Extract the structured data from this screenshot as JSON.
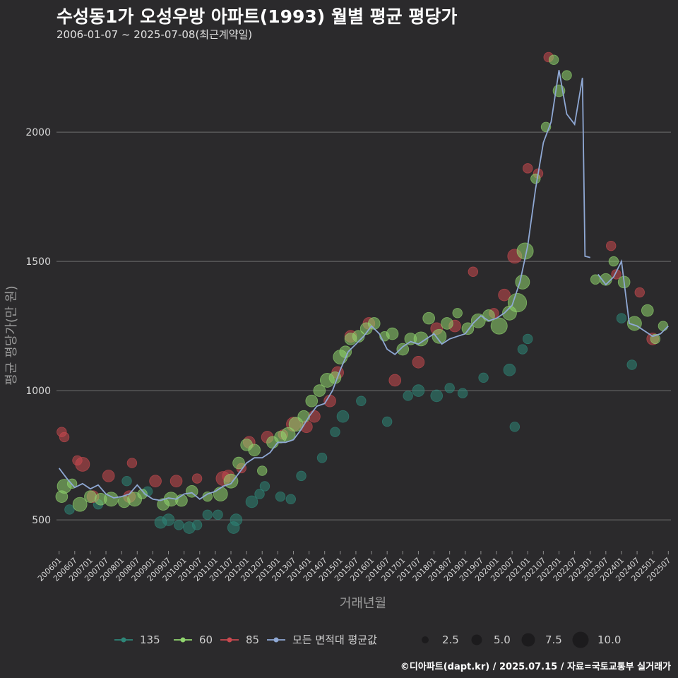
{
  "title": "수성동1가 오성우방 아파트(1993) 월별 평균 평당가",
  "subtitle": "2006-01-07 ~ 2025-07-08(최근계약일)",
  "credit": "©디아파트(dapt.kr) / 2025.07.15 / 자료=국토교통부 실거래가",
  "colors": {
    "background": "#2b2a2c",
    "grid": "#6e6e6e",
    "s135": "#2e8577",
    "s60": "#90d46e",
    "s85": "#c8494f",
    "avg": "#8fa8d4"
  },
  "chart_data": {
    "type": "scatter",
    "xlabel": "거래년월",
    "ylabel": "평균 평당가(만 원)",
    "x_range": [
      "2005-12",
      "2025-08"
    ],
    "ylim": [
      380,
      2320
    ],
    "y_ticks": [
      500,
      1000,
      1500,
      2000
    ],
    "x_ticks": [
      "200601",
      "200607",
      "200701",
      "200707",
      "200801",
      "200807",
      "200901",
      "200907",
      "201001",
      "201007",
      "201101",
      "201107",
      "201201",
      "201207",
      "201301",
      "201307",
      "201401",
      "201407",
      "201501",
      "201507",
      "201601",
      "201607",
      "201701",
      "201707",
      "201801",
      "201807",
      "201901",
      "201907",
      "202001",
      "202007",
      "202101",
      "202107",
      "202201",
      "202207",
      "202301",
      "202307",
      "202401",
      "202407",
      "202501",
      "202507"
    ],
    "grid": "horizontal",
    "legend_position": "bottom",
    "legend": {
      "series": [
        "135",
        "60",
        "85",
        "모든 면적대 평균값"
      ],
      "sizes": [
        "2.5",
        "5.0",
        "7.5",
        "10.0"
      ]
    },
    "avg_line": [
      [
        "2006-01",
        700
      ],
      [
        "2006-04",
        660
      ],
      [
        "2006-07",
        625
      ],
      [
        "2006-10",
        640
      ],
      [
        "2007-01",
        620
      ],
      [
        "2007-04",
        635
      ],
      [
        "2007-07",
        600
      ],
      [
        "2007-10",
        585
      ],
      [
        "2008-01",
        590
      ],
      [
        "2008-04",
        600
      ],
      [
        "2008-07",
        635
      ],
      [
        "2008-10",
        600
      ],
      [
        "2009-01",
        580
      ],
      [
        "2009-04",
        575
      ],
      [
        "2009-07",
        585
      ],
      [
        "2009-10",
        580
      ],
      [
        "2010-01",
        600
      ],
      [
        "2010-04",
        605
      ],
      [
        "2010-07",
        580
      ],
      [
        "2010-10",
        600
      ],
      [
        "2011-01",
        610
      ],
      [
        "2011-04",
        630
      ],
      [
        "2011-07",
        640
      ],
      [
        "2011-10",
        680
      ],
      [
        "2012-01",
        720
      ],
      [
        "2012-04",
        740
      ],
      [
        "2012-07",
        740
      ],
      [
        "2012-10",
        760
      ],
      [
        "2013-01",
        800
      ],
      [
        "2013-04",
        800
      ],
      [
        "2013-07",
        810
      ],
      [
        "2013-10",
        850
      ],
      [
        "2014-01",
        900
      ],
      [
        "2014-04",
        940
      ],
      [
        "2014-07",
        950
      ],
      [
        "2014-10",
        1000
      ],
      [
        "2015-01",
        1080
      ],
      [
        "2015-04",
        1150
      ],
      [
        "2015-07",
        1180
      ],
      [
        "2015-10",
        1210
      ],
      [
        "2016-01",
        1250
      ],
      [
        "2016-04",
        1220
      ],
      [
        "2016-07",
        1160
      ],
      [
        "2016-10",
        1140
      ],
      [
        "2017-01",
        1170
      ],
      [
        "2017-04",
        1190
      ],
      [
        "2017-07",
        1180
      ],
      [
        "2017-10",
        1200
      ],
      [
        "2018-01",
        1220
      ],
      [
        "2018-04",
        1180
      ],
      [
        "2018-07",
        1200
      ],
      [
        "2018-10",
        1210
      ],
      [
        "2019-01",
        1220
      ],
      [
        "2019-04",
        1260
      ],
      [
        "2019-07",
        1290
      ],
      [
        "2019-10",
        1270
      ],
      [
        "2020-01",
        1280
      ],
      [
        "2020-04",
        1300
      ],
      [
        "2020-07",
        1330
      ],
      [
        "2020-10",
        1420
      ],
      [
        "2021-01",
        1560
      ],
      [
        "2021-04",
        1780
      ],
      [
        "2021-07",
        1960
      ],
      [
        "2021-10",
        2040
      ],
      [
        "2022-01",
        2240
      ],
      [
        "2022-04",
        2070
      ],
      [
        "2022-07",
        2030
      ],
      [
        "2022-10",
        2210
      ],
      [
        "2022-11",
        1520
      ],
      [
        "2023-01",
        1515
      ],
      [
        "null",
        null
      ],
      [
        "2023-04",
        1450
      ],
      [
        "2023-07",
        1410
      ],
      [
        "2023-10",
        1440
      ],
      [
        "2024-01",
        1500
      ],
      [
        "2024-04",
        1260
      ],
      [
        "2024-07",
        1250
      ],
      [
        "2024-10",
        1230
      ],
      [
        "2025-01",
        1210
      ],
      [
        "2025-04",
        1220
      ],
      [
        "2025-07",
        1250
      ]
    ],
    "points": {
      "60": [
        [
          "2006-02",
          590,
          4
        ],
        [
          "2006-03",
          630,
          5
        ],
        [
          "2006-06",
          640,
          3
        ],
        [
          "2006-09",
          560,
          5
        ],
        [
          "2007-01",
          590,
          4
        ],
        [
          "2007-05",
          580,
          4
        ],
        [
          "2007-09",
          580,
          5
        ],
        [
          "2008-02",
          570,
          4
        ],
        [
          "2008-06",
          580,
          5
        ],
        [
          "2008-09",
          600,
          3
        ],
        [
          "2009-05",
          560,
          4
        ],
        [
          "2009-08",
          580,
          5
        ],
        [
          "2009-12",
          575,
          4
        ],
        [
          "2010-04",
          610,
          4
        ],
        [
          "2010-10",
          590,
          3
        ],
        [
          "2011-03",
          600,
          5
        ],
        [
          "2011-07",
          650,
          5
        ],
        [
          "2011-10",
          720,
          4
        ],
        [
          "2012-01",
          790,
          4
        ],
        [
          "2012-04",
          770,
          4
        ],
        [
          "2012-07",
          690,
          3
        ],
        [
          "2012-11",
          800,
          4
        ],
        [
          "2013-02",
          820,
          4
        ],
        [
          "2013-05",
          830,
          5
        ],
        [
          "2013-08",
          870,
          5
        ],
        [
          "2013-11",
          900,
          4
        ],
        [
          "2014-02",
          960,
          4
        ],
        [
          "2014-05",
          1000,
          4
        ],
        [
          "2014-08",
          1040,
          5
        ],
        [
          "2014-11",
          1050,
          4
        ],
        [
          "2015-01",
          1130,
          5
        ],
        [
          "2015-03",
          1150,
          4
        ],
        [
          "2015-05",
          1200,
          4
        ],
        [
          "2015-08",
          1210,
          4
        ],
        [
          "2015-11",
          1240,
          4
        ],
        [
          "2016-02",
          1260,
          4
        ],
        [
          "2016-06",
          1210,
          3
        ],
        [
          "2016-09",
          1220,
          4
        ],
        [
          "2017-01",
          1160,
          4
        ],
        [
          "2017-04",
          1200,
          4
        ],
        [
          "2017-08",
          1200,
          5
        ],
        [
          "2017-11",
          1280,
          4
        ],
        [
          "2018-03",
          1210,
          5
        ],
        [
          "2018-06",
          1260,
          4
        ],
        [
          "2018-10",
          1300,
          3
        ],
        [
          "2019-02",
          1240,
          4
        ],
        [
          "2019-06",
          1270,
          5
        ],
        [
          "2019-10",
          1290,
          4
        ],
        [
          "2020-02",
          1250,
          6
        ],
        [
          "2020-06",
          1300,
          5
        ],
        [
          "2020-09",
          1340,
          7
        ],
        [
          "2020-11",
          1420,
          5
        ],
        [
          "2020-12",
          1540,
          6
        ],
        [
          "2021-04",
          1820,
          3
        ],
        [
          "2021-08",
          2020,
          3
        ],
        [
          "2021-11",
          2280,
          3
        ],
        [
          "2022-01",
          2160,
          4
        ],
        [
          "2022-04",
          2220,
          3
        ],
        [
          "2023-03",
          1430,
          3
        ],
        [
          "2023-07",
          1430,
          4
        ],
        [
          "2023-10",
          1500,
          3
        ],
        [
          "2024-02",
          1420,
          4
        ],
        [
          "2024-06",
          1260,
          5
        ],
        [
          "2024-11",
          1310,
          4
        ],
        [
          "2025-02",
          1200,
          3
        ],
        [
          "2025-05",
          1250,
          3
        ]
      ],
      "85": [
        [
          "2006-02",
          840,
          3
        ],
        [
          "2006-03",
          820,
          3
        ],
        [
          "2006-08",
          730,
          3
        ],
        [
          "2006-10",
          715,
          5
        ],
        [
          "2007-02",
          590,
          4
        ],
        [
          "2007-08",
          670,
          4
        ],
        [
          "2008-04",
          590,
          4
        ],
        [
          "2008-05",
          720,
          3
        ],
        [
          "2009-02",
          650,
          4
        ],
        [
          "2009-10",
          650,
          4
        ],
        [
          "2010-06",
          660,
          3
        ],
        [
          "2011-04",
          660,
          5
        ],
        [
          "2011-06",
          670,
          4
        ],
        [
          "2011-11",
          700,
          3
        ],
        [
          "2012-02",
          800,
          4
        ],
        [
          "2012-09",
          820,
          4
        ],
        [
          "2013-03",
          830,
          3
        ],
        [
          "2013-07",
          870,
          5
        ],
        [
          "2013-12",
          860,
          4
        ],
        [
          "2014-03",
          900,
          4
        ],
        [
          "2014-09",
          960,
          4
        ],
        [
          "2014-12",
          1070,
          4
        ],
        [
          "2015-05",
          1210,
          4
        ],
        [
          "2015-12",
          1260,
          4
        ],
        [
          "2016-10",
          1040,
          4
        ],
        [
          "2017-07",
          1110,
          4
        ],
        [
          "2018-02",
          1240,
          4
        ],
        [
          "2018-09",
          1250,
          4
        ],
        [
          "2019-04",
          1460,
          3
        ],
        [
          "2019-12",
          1300,
          3
        ],
        [
          "2020-04",
          1370,
          4
        ],
        [
          "2020-08",
          1520,
          5
        ],
        [
          "2021-01",
          1860,
          3
        ],
        [
          "2021-05",
          1840,
          3
        ],
        [
          "2021-09",
          2290,
          3
        ],
        [
          "2023-09",
          1560,
          3
        ],
        [
          "2023-11",
          1450,
          3
        ],
        [
          "2024-08",
          1380,
          3
        ],
        [
          "2025-01",
          1200,
          4
        ]
      ],
      "135": [
        [
          "2006-05",
          540,
          3
        ],
        [
          "2007-04",
          560,
          3
        ],
        [
          "2008-03",
          650,
          3
        ],
        [
          "2008-11",
          610,
          3
        ],
        [
          "2009-04",
          490,
          4
        ],
        [
          "2009-07",
          500,
          4
        ],
        [
          "2009-11",
          480,
          3
        ],
        [
          "2010-03",
          470,
          4
        ],
        [
          "2010-06",
          480,
          3
        ],
        [
          "2010-10",
          520,
          3
        ],
        [
          "2011-02",
          520,
          3
        ],
        [
          "2011-08",
          470,
          4
        ],
        [
          "2011-09",
          500,
          4
        ],
        [
          "2012-03",
          570,
          4
        ],
        [
          "2012-06",
          600,
          3
        ],
        [
          "2012-08",
          630,
          3
        ],
        [
          "2013-02",
          590,
          3
        ],
        [
          "2013-06",
          580,
          3
        ],
        [
          "2013-10",
          670,
          3
        ],
        [
          "2014-06",
          740,
          3
        ],
        [
          "2014-11",
          840,
          3
        ],
        [
          "2015-02",
          900,
          4
        ],
        [
          "2015-09",
          960,
          3
        ],
        [
          "2016-07",
          880,
          3
        ],
        [
          "2017-03",
          980,
          3
        ],
        [
          "2017-07",
          1000,
          4
        ],
        [
          "2018-02",
          980,
          4
        ],
        [
          "2018-07",
          1010,
          3
        ],
        [
          "2018-12",
          990,
          3
        ],
        [
          "2019-08",
          1050,
          3
        ],
        [
          "2020-06",
          1080,
          4
        ],
        [
          "2020-08",
          860,
          3
        ],
        [
          "2020-11",
          1160,
          3
        ],
        [
          "2021-01",
          1200,
          3
        ],
        [
          "2024-01",
          1280,
          3
        ],
        [
          "2024-05",
          1100,
          3
        ]
      ]
    }
  }
}
